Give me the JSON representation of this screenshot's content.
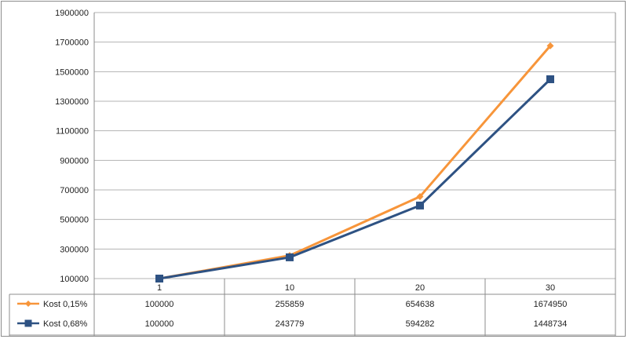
{
  "chart_data": {
    "type": "line",
    "categories": [
      "1",
      "10",
      "20",
      "30"
    ],
    "ylim": [
      100000,
      1900000
    ],
    "yticks": [
      100000,
      300000,
      500000,
      700000,
      900000,
      1100000,
      1300000,
      1500000,
      1700000,
      1900000
    ],
    "grid": true,
    "legend": "bottom data table",
    "series": [
      {
        "name": "Kost 0,15%",
        "values": [
          100000,
          255859,
          654638,
          1674950
        ],
        "value_labels": [
          "100000",
          "255859",
          "654638",
          "1674950"
        ],
        "color": "#f7953a",
        "marker": "diamond"
      },
      {
        "name": "Kost 0,68%",
        "values": [
          100000,
          243779,
          594282,
          1448734
        ],
        "value_labels": [
          "100000",
          "243779",
          "594282",
          "1448734"
        ],
        "color": "#2e5283",
        "marker": "square"
      }
    ]
  }
}
